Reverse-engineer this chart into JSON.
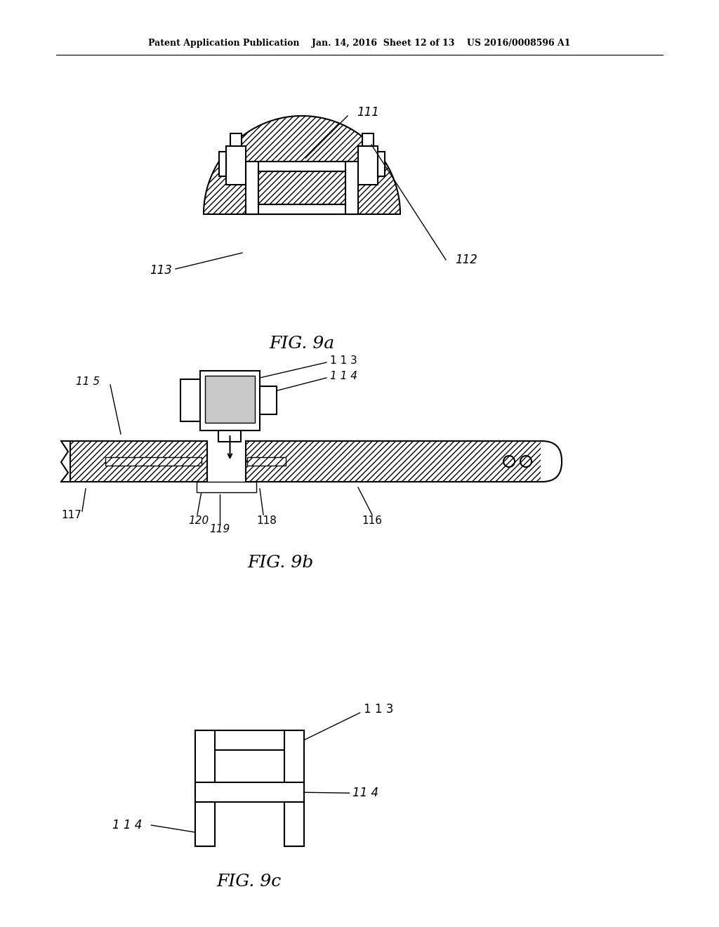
{
  "bg_color": "#ffffff",
  "header_text": "Patent Application Publication    Jan. 14, 2016  Sheet 12 of 13    US 2016/0008596 A1",
  "fig9a_label": "FIG. 9a",
  "fig9b_label": "FIG. 9b",
  "fig9c_label": "FIG. 9c",
  "label_111": "111",
  "label_112": "112",
  "label_113": "113",
  "label_114": "114",
  "label_115": "11 5",
  "label_116": "116",
  "label_117": "117",
  "label_118": "118",
  "label_119": "119",
  "label_120": "120",
  "label_114b": "1 1 4",
  "label_113b": "1 1 3",
  "label_114c_l": "1 1 4",
  "label_114c_r": "11 4",
  "label_113c": "1 1 3"
}
